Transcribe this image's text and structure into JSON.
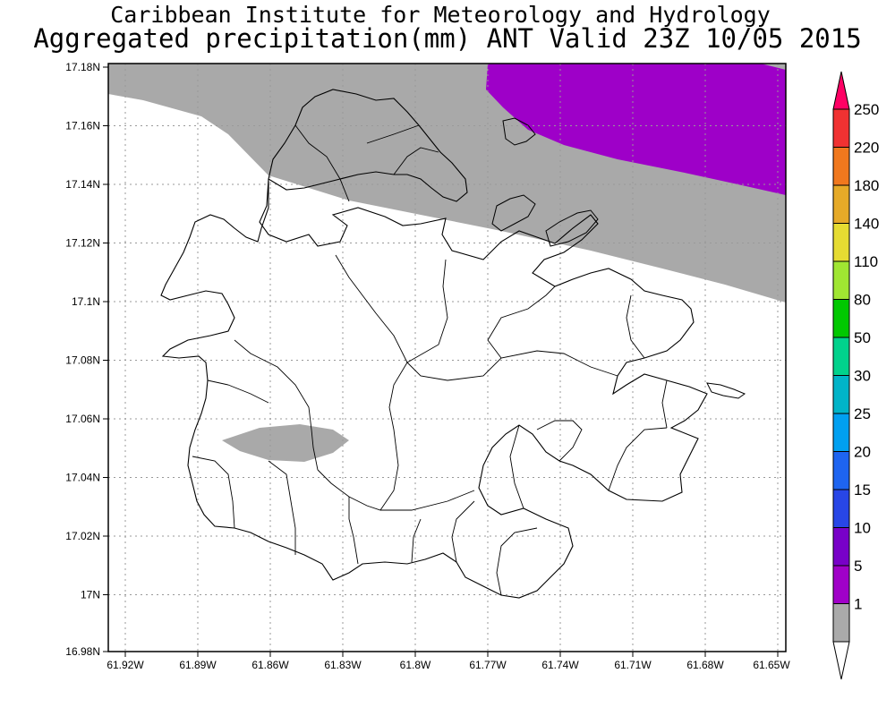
{
  "header": {
    "title_line1": "Caribbean Institute for Meteorology and Hydrology",
    "title_line2": "Aggregated precipitation(mm) ANT Valid 23Z 10/05 2015"
  },
  "map": {
    "lat_labels": [
      "17.18N",
      "17.16N",
      "17.14N",
      "17.12N",
      "17.1N",
      "17.08N",
      "17.06N",
      "17.04N",
      "17.02N",
      "17N",
      "16.98N"
    ],
    "lon_labels": [
      "61.92W",
      "61.89W",
      "61.86W",
      "61.83W",
      "61.8W",
      "61.77W",
      "61.74W",
      "61.71W",
      "61.68W",
      "61.65W"
    ],
    "lat_range": [
      16.98,
      17.18
    ],
    "lon_range": [
      -61.925,
      -61.645
    ],
    "grid": true,
    "precip_areas": [
      {
        "class": "1-5 mm",
        "color": "#a9a9a9"
      },
      {
        "class": "5-10 mm",
        "color": "#9e00c8"
      }
    ]
  },
  "legend": {
    "labels": [
      "250",
      "220",
      "180",
      "140",
      "110",
      "80",
      "50",
      "30",
      "25",
      "20",
      "15",
      "10",
      "5",
      "1"
    ],
    "colors": [
      "#ff0064",
      "#f03232",
      "#f0781e",
      "#e6aa28",
      "#e6dc32",
      "#a0e632",
      "#00c800",
      "#00d28c",
      "#00b4c8",
      "#00a0f0",
      "#1e64f0",
      "#2846e6",
      "#7800c8",
      "#a000c8",
      "#aaaaaa"
    ]
  }
}
